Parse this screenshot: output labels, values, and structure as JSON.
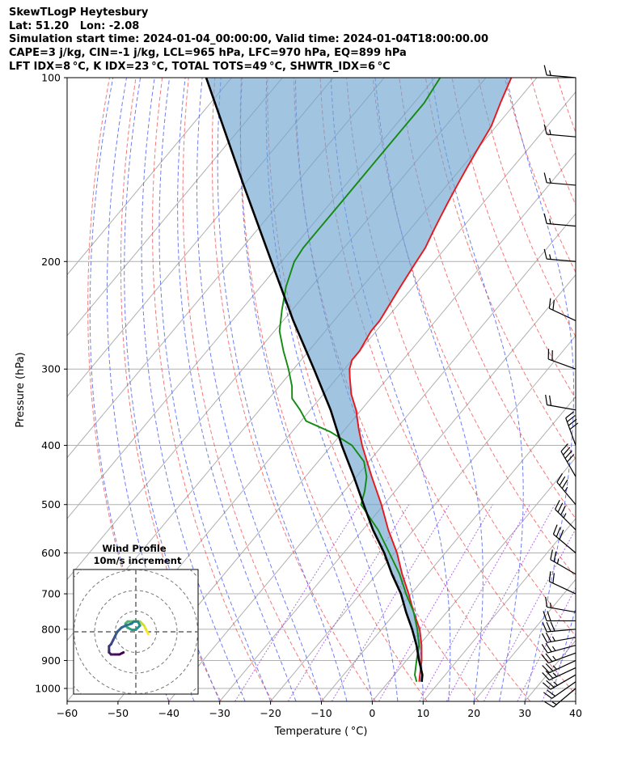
{
  "header": {
    "line1": "SkewTLogP Heytesbury",
    "line2": "Lat: 51.20   Lon: -2.08",
    "line3": "Simulation start time: 2024-01-04_00:00:00, Valid time: 2024-01-04T18:00:00.00",
    "line4": "CAPE=3 j/kg, CIN=-1 j/kg, LCL=965 hPa, LFC=970 hPa, EQ=899 hPa",
    "line5": "LFT IDX=8 °C, K IDX=23 °C, TOTAL TOTS=49 °C, SHWTR_IDX=6 °C"
  },
  "chart_data": {
    "type": "line",
    "subtype": "skew-t log-p",
    "xlabel": "Temperature ( °C)",
    "ylabel": "Pressure (hPa)",
    "xlim": [
      -60,
      40
    ],
    "ylim": [
      1050,
      100
    ],
    "x_ticks": [
      -60,
      -50,
      -40,
      -30,
      -20,
      -10,
      0,
      10,
      20,
      30,
      40
    ],
    "x_tick_labels": [
      "−60",
      "−50",
      "−40",
      "−30",
      "−20",
      "−10",
      "0",
      "10",
      "20",
      "30",
      "40"
    ],
    "y_ticks": [
      1000,
      900,
      800,
      700,
      600,
      500,
      400,
      300,
      200,
      100
    ],
    "y_tick_labels": [
      "1000",
      "900",
      "800",
      "700",
      "600",
      "500",
      "400",
      "300",
      "200",
      "100"
    ],
    "grid": true,
    "series": [
      {
        "name": "Temperature",
        "color": "#e8171b",
        "pressure": [
          975,
          950,
          900,
          850,
          800,
          750,
          700,
          650,
          600,
          550,
          500,
          450,
          400,
          375,
          350,
          330,
          310,
          300,
          290,
          280,
          270,
          260,
          250,
          240,
          230,
          220,
          210,
          200,
          190,
          180,
          170,
          160,
          150,
          140,
          130,
          120,
          110,
          100
        ],
        "temperature": [
          6,
          5,
          3,
          0.5,
          -2.5,
          -6.5,
          -10.5,
          -15,
          -19.5,
          -25,
          -30.5,
          -37,
          -44,
          -47.5,
          -51,
          -54.5,
          -57.5,
          -59,
          -60,
          -60,
          -60.5,
          -61,
          -61,
          -61.5,
          -62,
          -62.5,
          -63,
          -63.5,
          -64,
          -65,
          -66,
          -67,
          -68,
          -69,
          -70,
          -71,
          -73,
          -75
        ]
      },
      {
        "name": "Dewpoint",
        "color": "#138a12",
        "pressure": [
          975,
          950,
          900,
          875,
          850,
          800,
          750,
          700,
          650,
          600,
          550,
          500,
          475,
          450,
          425,
          400,
          380,
          365,
          350,
          335,
          320,
          300,
          280,
          260,
          240,
          220,
          200,
          190,
          180,
          170,
          160,
          150,
          140,
          130,
          120,
          110,
          100
        ],
        "temperature": [
          5.5,
          4,
          2,
          1,
          0,
          -3,
          -6.5,
          -11,
          -15.5,
          -21,
          -27,
          -34.5,
          -36,
          -38,
          -41,
          -46,
          -52.5,
          -59,
          -62,
          -65.5,
          -67.5,
          -71,
          -75,
          -79,
          -82,
          -85,
          -87.5,
          -88,
          -88,
          -88,
          -88,
          -88,
          -88,
          -88,
          -88,
          -88,
          -89
        ]
      },
      {
        "name": "Parcel profile",
        "color": "#000000",
        "pressure": [
          975,
          950,
          900,
          850,
          800,
          750,
          700,
          650,
          600,
          550,
          500,
          450,
          400,
          350,
          300,
          250,
          200,
          150,
          100
        ],
        "temperature": [
          6.5,
          5.5,
          2.5,
          -0.5,
          -4,
          -8,
          -12,
          -17,
          -22,
          -28,
          -34,
          -40.5,
          -48,
          -56,
          -66,
          -78,
          -92,
          -110,
          -135
        ]
      }
    ],
    "shaded_region": "CAPE/CIN area between parcel profile and temperature",
    "background_lines": {
      "isotherms": [
        -130,
        -120,
        -110,
        -100,
        -90,
        -80,
        -70,
        -60,
        -50,
        -40,
        -30,
        -20,
        -10,
        0,
        10,
        20,
        30,
        40
      ],
      "dry_adiabats_theta_K": [
        230,
        240,
        250,
        260,
        270,
        280,
        290,
        300,
        310,
        320,
        330,
        340,
        350,
        360,
        370,
        380,
        390,
        400,
        410,
        420,
        430,
        440,
        450,
        460
      ],
      "moist_adiabats_start_C": [
        -40,
        -35,
        -30,
        -25,
        -20,
        -15,
        -10,
        -5,
        0,
        5,
        10,
        15,
        20,
        25,
        30,
        35,
        40,
        45
      ],
      "mixing_ratio_lines_gkg": [
        0.4,
        1,
        2,
        4,
        7,
        10,
        16,
        24,
        32
      ]
    },
    "wind_barbs": {
      "pressure": [
        1000,
        975,
        950,
        925,
        900,
        875,
        850,
        825,
        800,
        775,
        750,
        700,
        650,
        600,
        550,
        500,
        450,
        400,
        350,
        300,
        250,
        200,
        175,
        150,
        125,
        100
      ],
      "speed_kt": [
        15,
        20,
        25,
        25,
        25,
        25,
        25,
        25,
        30,
        20,
        15,
        20,
        25,
        30,
        35,
        35,
        40,
        40,
        20,
        20,
        20,
        15,
        15,
        15,
        15,
        15
      ],
      "direction_deg": [
        230,
        235,
        240,
        245,
        245,
        250,
        255,
        260,
        265,
        270,
        280,
        295,
        300,
        310,
        315,
        320,
        330,
        340,
        280,
        290,
        295,
        275,
        275,
        275,
        275,
        275
      ]
    }
  },
  "hodograph": {
    "title_line1": "Wind Profile",
    "title_line2": "10m/s increment",
    "ring_spacing_ms": 10,
    "u": [
      6,
      5,
      4,
      3,
      2,
      1,
      0,
      -1,
      -2,
      -3,
      -4,
      -5,
      -5,
      -4,
      -2,
      0,
      2,
      1,
      -1,
      -2,
      -5,
      -7,
      -9,
      -10,
      -11,
      -12,
      -13,
      -13,
      -13,
      -12,
      -10,
      -8,
      -6
    ],
    "v": [
      -1,
      1,
      3,
      4,
      5,
      5,
      5,
      5,
      5,
      5,
      5,
      4,
      3,
      2,
      1,
      1,
      3,
      5,
      5,
      4,
      3,
      2,
      0,
      -2,
      -4,
      -6,
      -7,
      -9,
      -10,
      -11,
      -11,
      -11,
      -10
    ]
  }
}
